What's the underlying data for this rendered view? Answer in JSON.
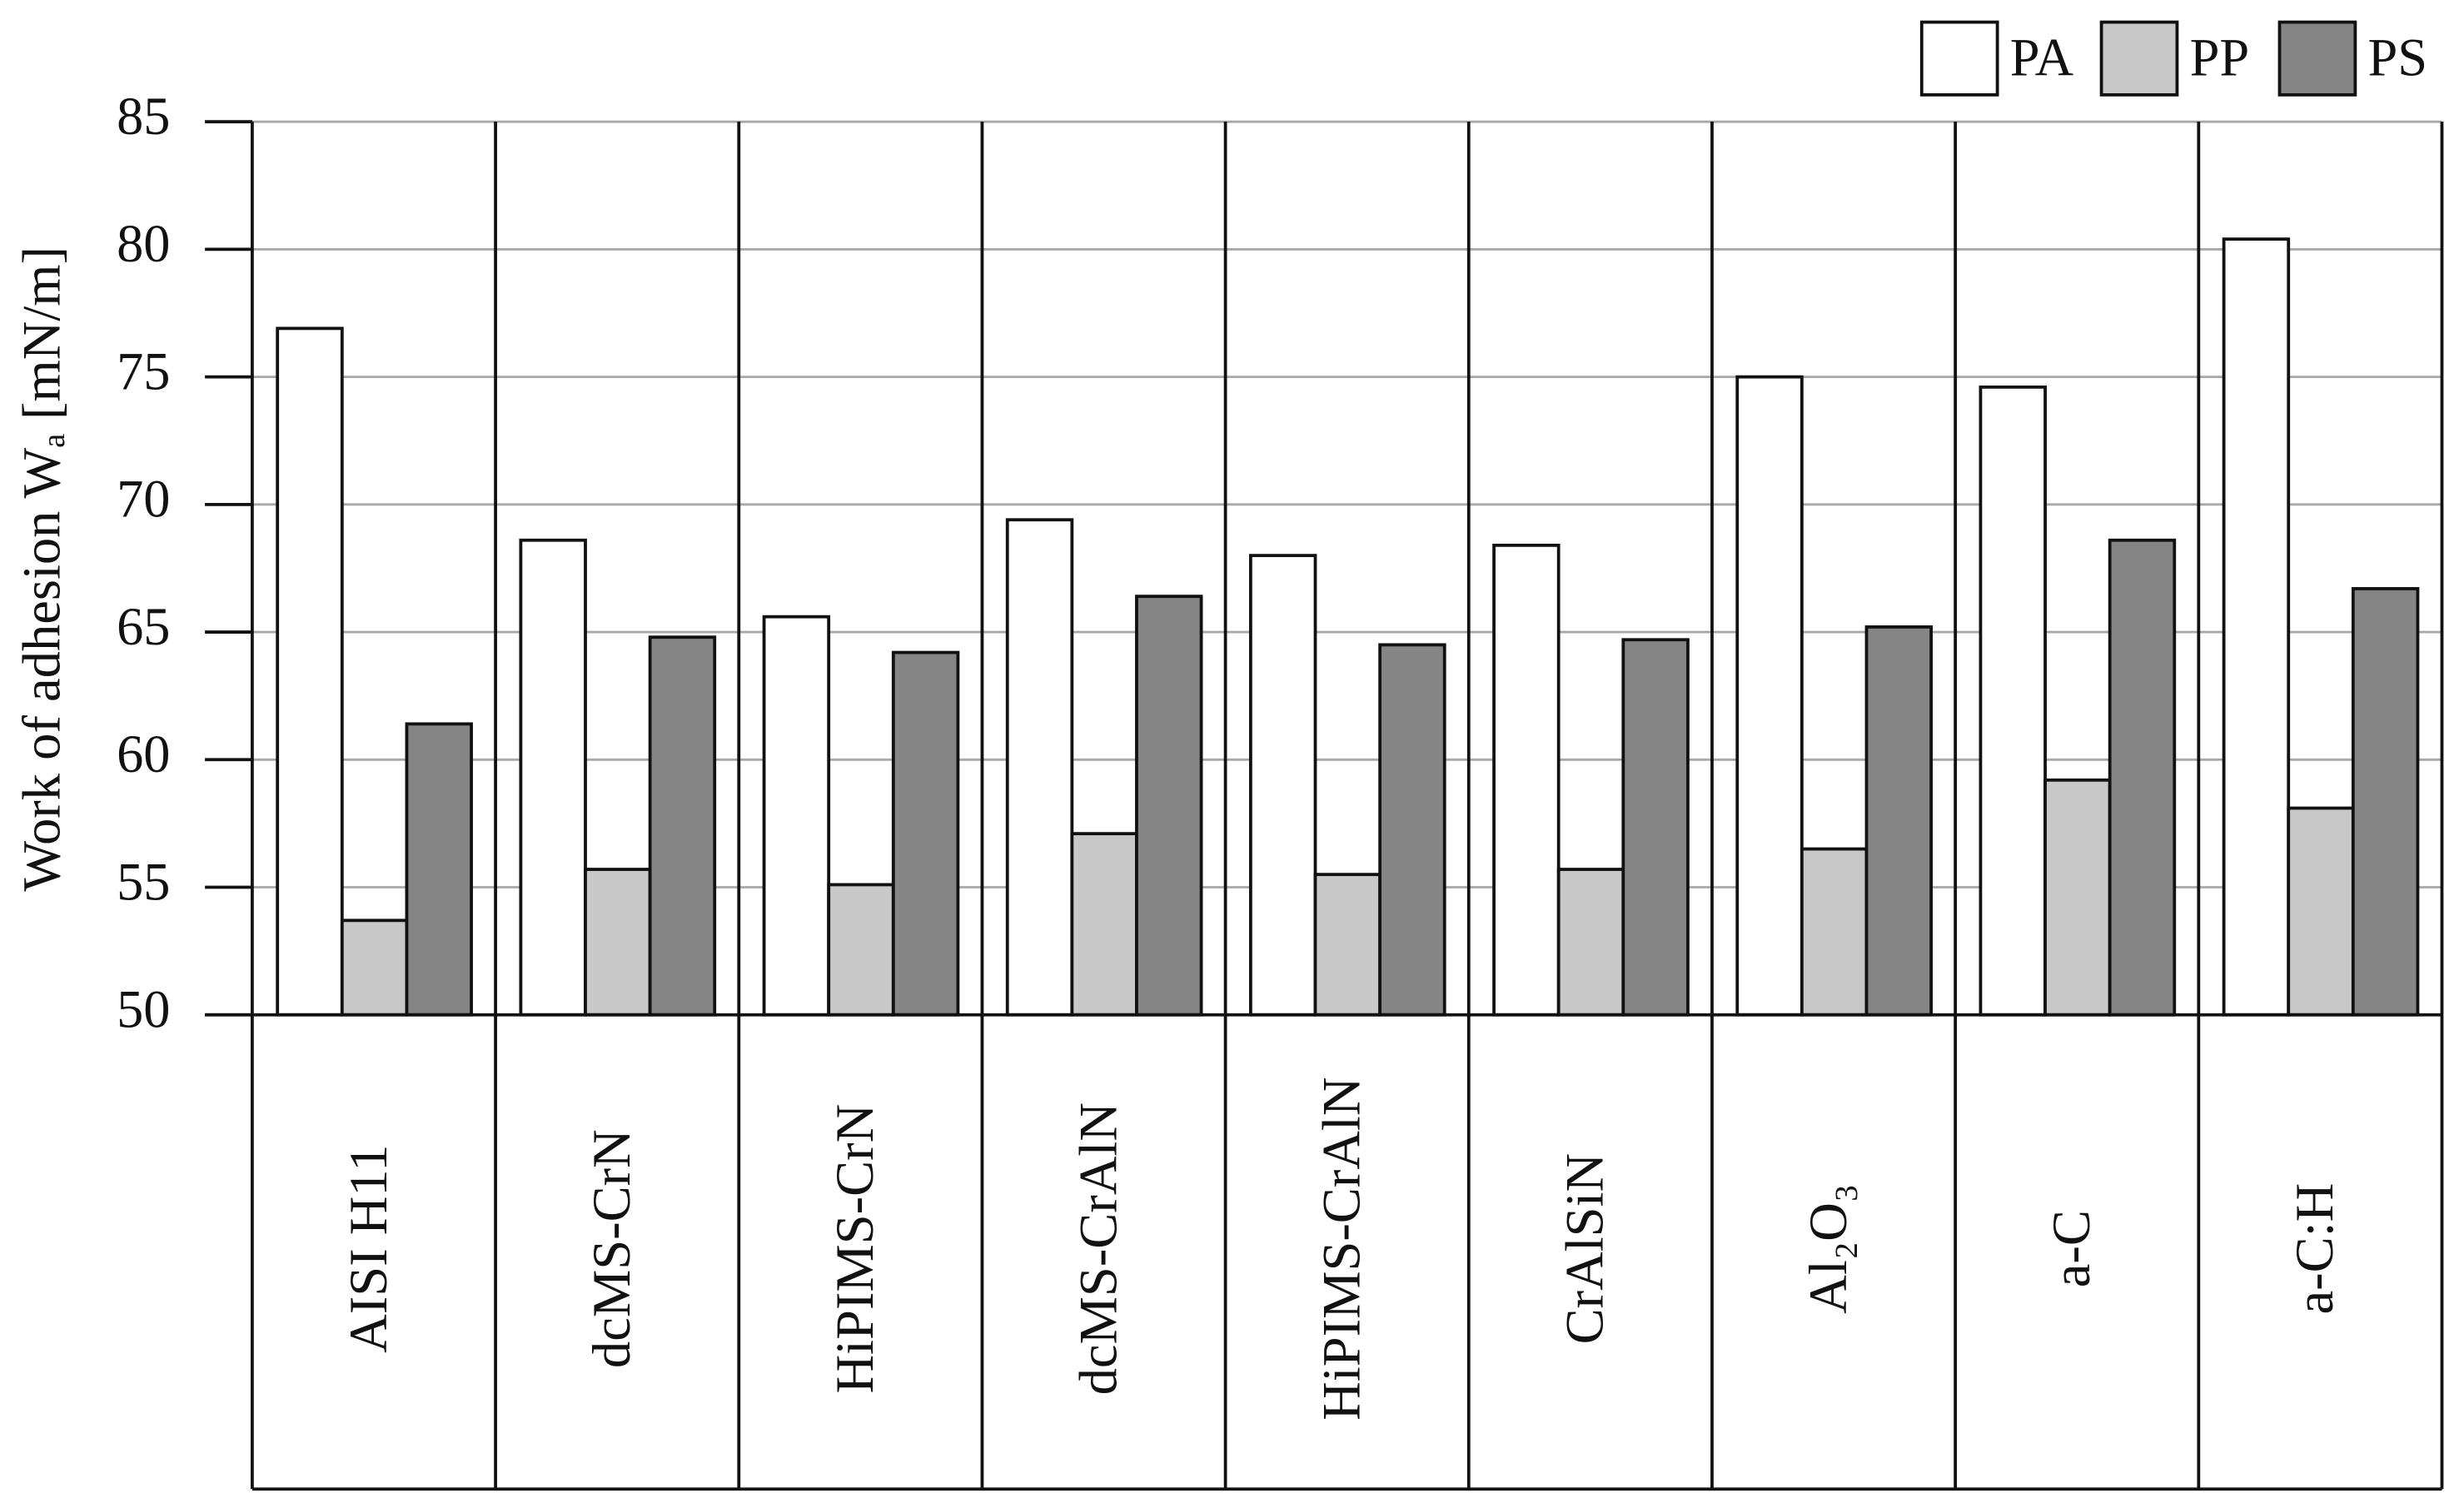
{
  "chart_data": {
    "type": "bar",
    "y_label": "Work of adhesion Wₐ [mN/m]",
    "categories": [
      "AISI H11",
      "dcMS-CrN",
      "HiPIMS-CrN",
      "dcMS-CrAlN",
      "HiPIMS-CrAlN",
      "CrAlSiN",
      "Al₂O₃",
      "a-C",
      "a-C:H"
    ],
    "series": [
      {
        "name": "PA",
        "color": "#ffffff",
        "values": [
          76.9,
          68.6,
          65.6,
          69.4,
          68.0,
          68.4,
          75.0,
          74.6,
          80.4
        ]
      },
      {
        "name": "PP",
        "color": "#c8c8c8",
        "values": [
          53.7,
          55.7,
          55.1,
          57.1,
          55.5,
          55.7,
          56.5,
          59.2,
          58.1
        ]
      },
      {
        "name": "PS",
        "color": "#858585",
        "values": [
          61.4,
          64.8,
          64.2,
          66.4,
          64.5,
          64.7,
          65.2,
          68.6,
          66.7
        ]
      }
    ],
    "ylim": [
      50,
      85
    ],
    "yticks": [
      50,
      55,
      60,
      65,
      70,
      75,
      80,
      85
    ],
    "grid": true,
    "legend": "top-right"
  }
}
